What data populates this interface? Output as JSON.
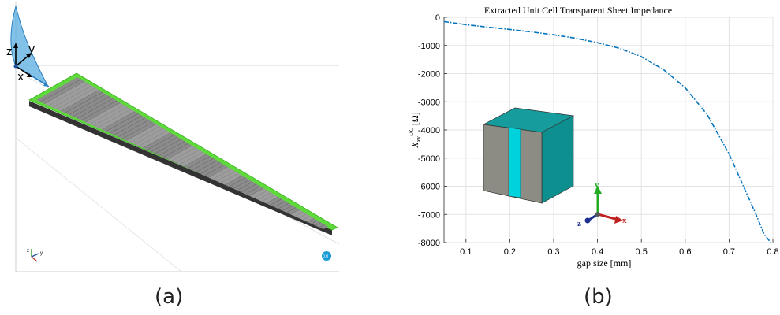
{
  "panel_a": {
    "caption": "(a)",
    "axis_labels": {
      "z": "z",
      "y": "y",
      "x": "x"
    },
    "mini_triad": {
      "z": "z",
      "y": "y"
    },
    "badge": "0.0",
    "colors": {
      "frame": "#5edb3a",
      "strips": "#8c8c8c",
      "base": "#333333",
      "beam": "#5aaee0"
    }
  },
  "panel_b": {
    "caption": "(b)",
    "triad": {
      "x": "x",
      "y": "y",
      "z": "z"
    },
    "colors": {
      "cube_front": "#8c8c84",
      "cube_side": "#0e8f8f",
      "cube_top": "#169c9c",
      "gap": "#00d2dc"
    }
  },
  "chart_data": {
    "type": "line",
    "title": "Extracted Unit Cell Transparent Sheet Impedance",
    "xlabel": "gap size [mm]",
    "ylabel": "X_xx^UC [Ω]",
    "ylabel_parts": {
      "main": "X",
      "sub": "xx",
      "sup": "UC",
      "unit": " [Ω]"
    },
    "xlim": [
      0.05,
      0.8
    ],
    "ylim": [
      -8000,
      0
    ],
    "xticks": [
      "0.1",
      "0.2",
      "0.3",
      "0.4",
      "0.5",
      "0.6",
      "0.7",
      "0.8"
    ],
    "yticks": [
      "0",
      "-1000",
      "-2000",
      "-3000",
      "-4000",
      "-5000",
      "-6000",
      "-7000",
      "-8000"
    ],
    "line_style": "dash-dot",
    "line_color": "#0072bd",
    "grid": true,
    "series": [
      {
        "x": [
          0.05,
          0.1,
          0.15,
          0.2,
          0.25,
          0.3,
          0.35,
          0.4,
          0.45,
          0.5,
          0.55,
          0.6,
          0.65,
          0.7,
          0.72,
          0.74,
          0.76,
          0.78,
          0.795
        ],
        "y": [
          -150,
          -260,
          -350,
          -430,
          -520,
          -620,
          -740,
          -900,
          -1100,
          -1400,
          -1850,
          -2500,
          -3450,
          -4850,
          -5550,
          -6250,
          -6950,
          -7700,
          -8000
        ]
      }
    ]
  }
}
